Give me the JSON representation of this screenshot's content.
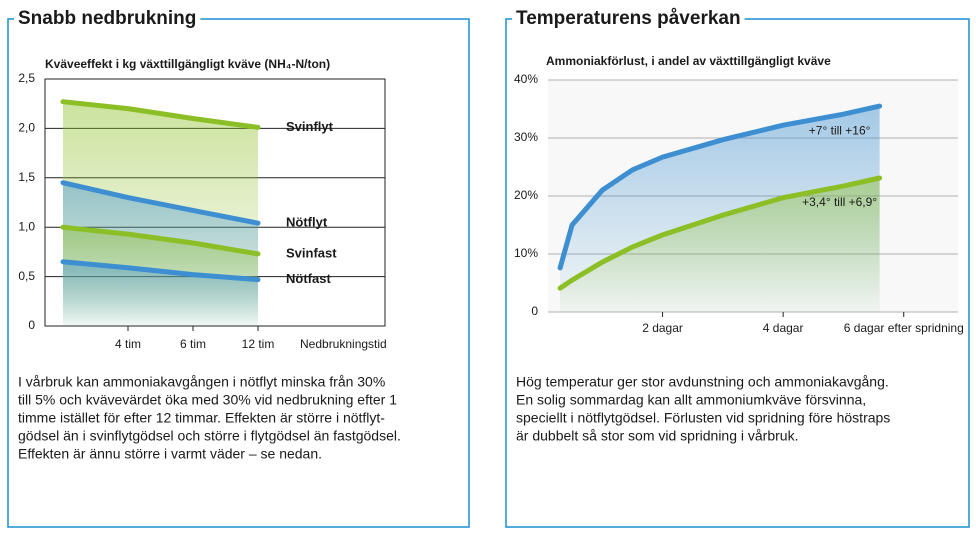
{
  "chart_data": [
    {
      "type": "line",
      "title": "Snabb nedbrukning",
      "subtitle": "Kväveeffekt i kg växttillgängligt kväve (NH₄-N/ton)",
      "xlabel": "Nedbrukningstid",
      "categories": [
        null,
        "4 tim",
        "6 tim",
        "12 tim"
      ],
      "ylim": [
        0,
        2.5
      ],
      "yticks": [
        0,
        {
          "value": 0.5,
          "label": "0,5"
        },
        {
          "value": 1,
          "label": "1,0"
        },
        {
          "value": 1.5,
          "label": "1,5"
        },
        {
          "value": 2,
          "label": "2,0"
        },
        {
          "value": 2.5,
          "label": "2,5"
        }
      ],
      "grid": true,
      "series": [
        {
          "name": "Svinflyt",
          "color": "#8cbf26",
          "values": [
            2.27,
            2.2,
            2.1,
            2.01
          ]
        },
        {
          "name": "Nötflyt",
          "color": "#3d8fd1",
          "values": [
            1.45,
            1.3,
            1.17,
            1.04
          ]
        },
        {
          "name": "Svinfast",
          "color": "#8cbf26",
          "values": [
            1.0,
            0.93,
            0.84,
            0.73
          ]
        },
        {
          "name": "Nötfast",
          "color": "#3d8fd1",
          "values": [
            0.65,
            0.59,
            0.52,
            0.47
          ]
        }
      ],
      "description": [
        "I vårbruk kan ammoniakavgången i nötflyt minska från 30%",
        "till 5% och kvävevärdet öka med 30% vid nedbrukning efter 1",
        "timme istället för efter 12 timmar. Effekten är större i nötflyt-",
        "gödsel än i svinflytgödsel och större i flytgödsel än fastgödsel.",
        "Effekten är ännu större i varmt väder – se nedan."
      ]
    },
    {
      "type": "line",
      "title": "Temperaturens påverkan",
      "subtitle": "Ammoniakförlust, i andel av växttillgängligt kväve",
      "x": [
        0.3,
        0.5,
        1,
        1.5,
        2,
        3,
        4,
        5,
        5.6
      ],
      "xlim": [
        0.1,
        6.9
      ],
      "xticks": [
        {
          "value": 2,
          "label": "2 dagar"
        },
        {
          "value": 4,
          "label": "4 dagar"
        },
        {
          "value": 6,
          "label": "6 dagar efter spridning"
        }
      ],
      "ylim": [
        0,
        40
      ],
      "yticks": [
        0,
        {
          "value": 10,
          "label": "10%"
        },
        {
          "value": 20,
          "label": "20%"
        },
        {
          "value": 30,
          "label": "30%"
        },
        {
          "value": 40,
          "label": "40%"
        }
      ],
      "grid": true,
      "series": [
        {
          "name": "+7° till +16°",
          "color": "#3d8fd1",
          "values": [
            7.6,
            15,
            21,
            24.5,
            26.7,
            29.7,
            32.2,
            34.1,
            35.5
          ]
        },
        {
          "name": "+3,4° till +6,9°",
          "color": "#8cbf26",
          "values": [
            4.1,
            5.5,
            8.6,
            11.2,
            13.3,
            16.7,
            19.7,
            21.7,
            23.1
          ]
        }
      ],
      "description": [
        "Hög temperatur ger stor avdunstning och ammoniakavgång.",
        "En solig sommardag kan allt ammoniumkväve försvinna,",
        "speciellt i nötflytgödsel. Förlusten vid spridning före höstraps",
        "är dubbelt så stor som vid spridning i vårbruk."
      ]
    }
  ]
}
